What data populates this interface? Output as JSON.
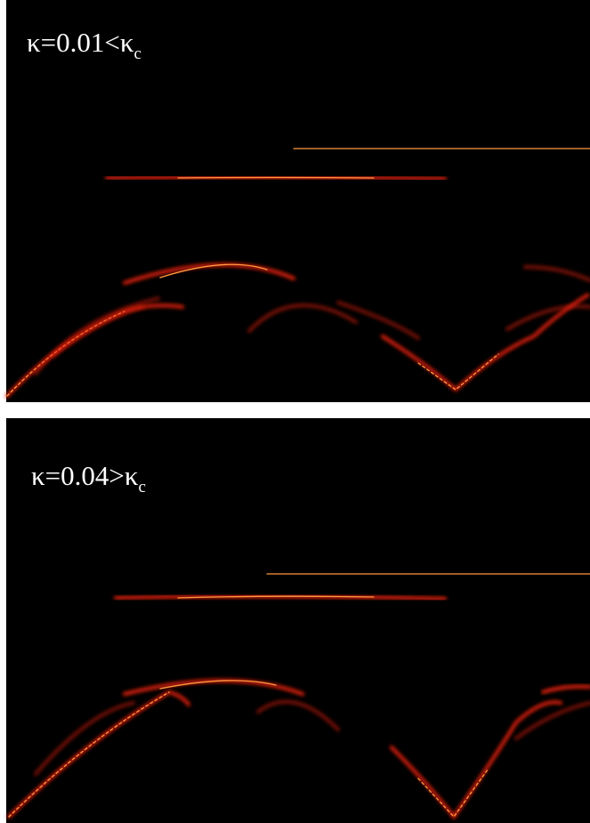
{
  "panels": [
    {
      "label": "κ=0.01<κ",
      "subscript": "c"
    },
    {
      "label": "κ=0.04>κ",
      "subscript": "c"
    }
  ]
}
